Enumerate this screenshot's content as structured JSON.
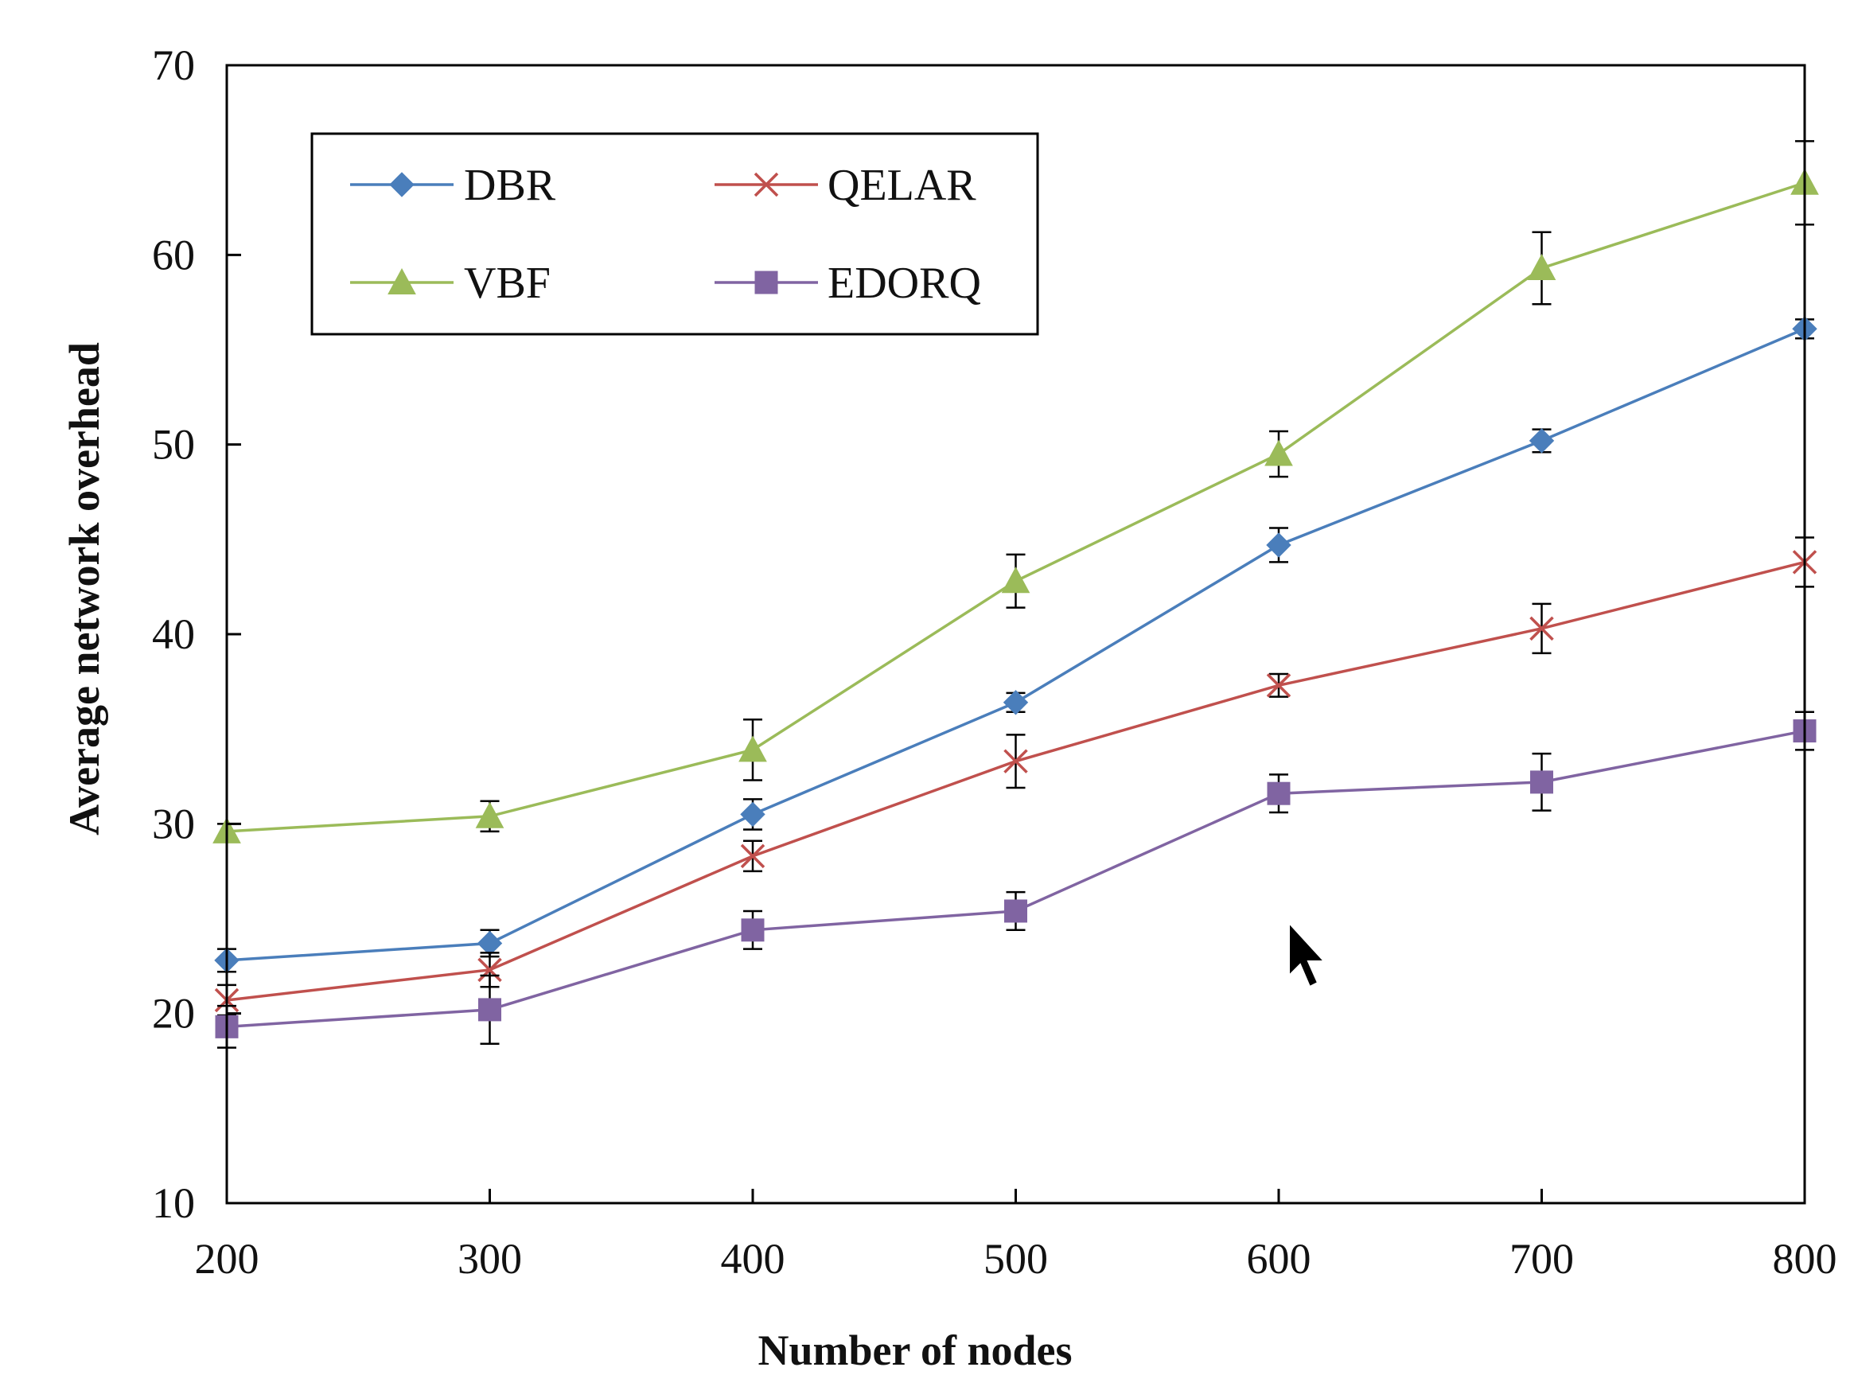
{
  "chart_data": {
    "type": "line",
    "title": "",
    "xlabel": "Number of nodes",
    "ylabel": "Average network overhead",
    "x": [
      200,
      300,
      400,
      500,
      600,
      700,
      800
    ],
    "xlim": [
      200,
      800
    ],
    "ylim": [
      10,
      70
    ],
    "xticks": [
      "200",
      "300",
      "400",
      "500",
      "600",
      "700",
      "800"
    ],
    "yticks": [
      "10",
      "20",
      "30",
      "40",
      "50",
      "60",
      "70"
    ],
    "grid": false,
    "legend_position": "top-left",
    "series": [
      {
        "name": "DBR",
        "color": "#4a7ebb",
        "marker": "diamond",
        "values": [
          22.8,
          23.7,
          30.5,
          36.4,
          44.7,
          50.2,
          56.1
        ],
        "error": [
          0.6,
          0.7,
          0.8,
          0.5,
          0.9,
          0.6,
          0.5
        ]
      },
      {
        "name": "QELAR",
        "color": "#c0504d",
        "marker": "x",
        "values": [
          20.7,
          22.3,
          28.3,
          33.3,
          37.3,
          40.3,
          43.8
        ],
        "error": [
          0.8,
          0.9,
          0.8,
          1.4,
          0.6,
          1.3,
          1.3
        ]
      },
      {
        "name": "VBF",
        "color": "#9bbb59",
        "marker": "triangle",
        "values": [
          29.6,
          30.4,
          33.9,
          42.8,
          49.5,
          59.3,
          63.8
        ],
        "error": [
          0.4,
          0.8,
          1.6,
          1.4,
          1.2,
          1.9,
          2.2
        ]
      },
      {
        "name": "EDORQ",
        "color": "#8064a2",
        "marker": "square",
        "values": [
          19.3,
          20.2,
          24.4,
          25.4,
          31.6,
          32.2,
          34.9
        ],
        "error": [
          1.1,
          1.8,
          1.0,
          1.0,
          1.0,
          1.5,
          1.0
        ]
      }
    ]
  }
}
